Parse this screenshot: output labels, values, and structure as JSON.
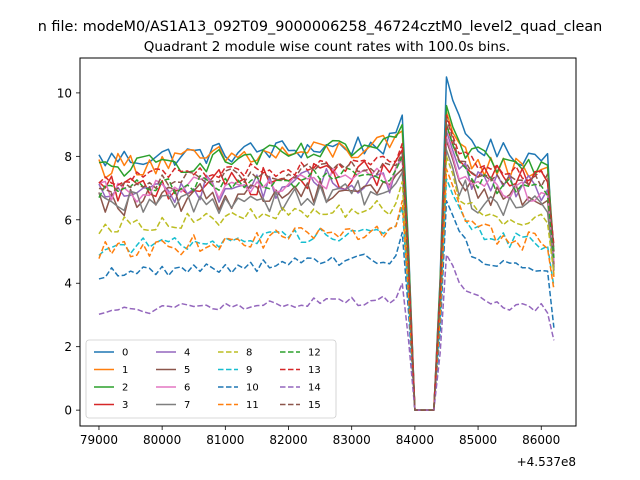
{
  "chart_data": {
    "type": "line",
    "suptitle": "n file: modeM0/AS1A13_092T09_9000006258_46724cztM0_level2_quad_clean",
    "title": "Quadrant 2 module wise count rates with 100.0s bins.",
    "xlabel": "",
    "ylabel": "",
    "x_offset_label": "+4.537e8",
    "xlim": [
      78700,
      86550
    ],
    "ylim": [
      -0.5,
      11.1
    ],
    "xticks": [
      79000,
      80000,
      81000,
      82000,
      83000,
      84000,
      85000,
      86000
    ],
    "xtick_labels": [
      "79000",
      "80000",
      "81000",
      "82000",
      "83000",
      "84000",
      "85000",
      "86000"
    ],
    "yticks": [
      0,
      2,
      4,
      6,
      8,
      10
    ],
    "ytick_labels": [
      "0",
      "2",
      "4",
      "6",
      "8",
      "10"
    ],
    "grid": false,
    "legend_position": "lower-left",
    "legend_columns": 4,
    "x_start": 79000,
    "x_step": 100,
    "n_points": 73,
    "series": [
      {
        "name": "0",
        "color": "#1f77b4",
        "dash": "solid",
        "baseline": 7.9,
        "amp": 0.35,
        "drift": 0.5,
        "pre_peak": 9.3,
        "post_peak": 10.5,
        "post_level": 8.0,
        "end": 4.4
      },
      {
        "name": "1",
        "color": "#ff7f0e",
        "dash": "solid",
        "baseline": 7.7,
        "amp": 0.4,
        "drift": 0.6,
        "pre_peak": 8.8,
        "post_peak": 9.4,
        "post_level": 7.6,
        "end": 4.2
      },
      {
        "name": "2",
        "color": "#2ca02c",
        "dash": "solid",
        "baseline": 7.6,
        "amp": 0.35,
        "drift": 0.7,
        "pre_peak": 9.0,
        "post_peak": 9.6,
        "post_level": 7.7,
        "end": 5.0
      },
      {
        "name": "3",
        "color": "#d62728",
        "dash": "solid",
        "baseline": 6.9,
        "amp": 0.45,
        "drift": 0.6,
        "pre_peak": 8.2,
        "post_peak": 9.0,
        "post_level": 7.2,
        "end": 4.6
      },
      {
        "name": "4",
        "color": "#9467bd",
        "dash": "solid",
        "baseline": 6.8,
        "amp": 0.45,
        "drift": 0.5,
        "pre_peak": 8.0,
        "post_peak": 8.8,
        "post_level": 7.0,
        "end": 4.8
      },
      {
        "name": "5",
        "color": "#8c564b",
        "dash": "solid",
        "baseline": 6.5,
        "amp": 0.45,
        "drift": 0.6,
        "pre_peak": 7.6,
        "post_peak": 8.5,
        "post_level": 6.7,
        "end": 4.5
      },
      {
        "name": "6",
        "color": "#e377c2",
        "dash": "solid",
        "baseline": 6.8,
        "amp": 0.4,
        "drift": 0.6,
        "pre_peak": 7.9,
        "post_peak": 8.6,
        "post_level": 6.9,
        "end": 4.7
      },
      {
        "name": "7",
        "color": "#7f7f7f",
        "dash": "solid",
        "baseline": 6.4,
        "amp": 0.45,
        "drift": 0.5,
        "pre_peak": 7.5,
        "post_peak": 8.2,
        "post_level": 6.4,
        "end": 4.4
      },
      {
        "name": "8",
        "color": "#bcbd22",
        "dash": "dashed",
        "baseline": 5.8,
        "amp": 0.25,
        "drift": 0.6,
        "pre_peak": 7.2,
        "post_peak": 8.0,
        "post_level": 6.0,
        "end": 4.3
      },
      {
        "name": "9",
        "color": "#17becf",
        "dash": "dashed",
        "baseline": 5.1,
        "amp": 0.25,
        "drift": 0.6,
        "pre_peak": 6.4,
        "post_peak": 7.3,
        "post_level": 5.3,
        "end": 3.9
      },
      {
        "name": "10",
        "color": "#1f77b4",
        "dash": "dashed",
        "baseline": 4.3,
        "amp": 0.2,
        "drift": 0.5,
        "pre_peak": 5.6,
        "post_peak": 6.6,
        "post_level": 4.5,
        "end": 2.6
      },
      {
        "name": "11",
        "color": "#ff7f0e",
        "dash": "dashed",
        "baseline": 5.0,
        "amp": 0.3,
        "drift": 0.7,
        "pre_peak": 6.6,
        "post_peak": 7.6,
        "post_level": 5.3,
        "end": 3.8
      },
      {
        "name": "12",
        "color": "#2ca02c",
        "dash": "dashed",
        "baseline": 6.9,
        "amp": 0.3,
        "drift": 0.6,
        "pre_peak": 8.0,
        "post_peak": 9.0,
        "post_level": 7.0,
        "end": 4.8
      },
      {
        "name": "13",
        "color": "#d62728",
        "dash": "dashed",
        "baseline": 7.3,
        "amp": 0.25,
        "drift": 0.5,
        "pre_peak": 8.4,
        "post_peak": 9.3,
        "post_level": 7.4,
        "end": 5.2
      },
      {
        "name": "14",
        "color": "#9467bd",
        "dash": "dashed",
        "baseline": 3.1,
        "amp": 0.15,
        "drift": 0.4,
        "pre_peak": 4.0,
        "post_peak": 4.9,
        "post_level": 3.2,
        "end": 2.2
      },
      {
        "name": "15",
        "color": "#8c564b",
        "dash": "dashed",
        "baseline": 7.1,
        "amp": 0.25,
        "drift": 0.6,
        "pre_peak": 8.1,
        "post_peak": 9.2,
        "post_level": 7.2,
        "end": 5.0
      }
    ]
  }
}
